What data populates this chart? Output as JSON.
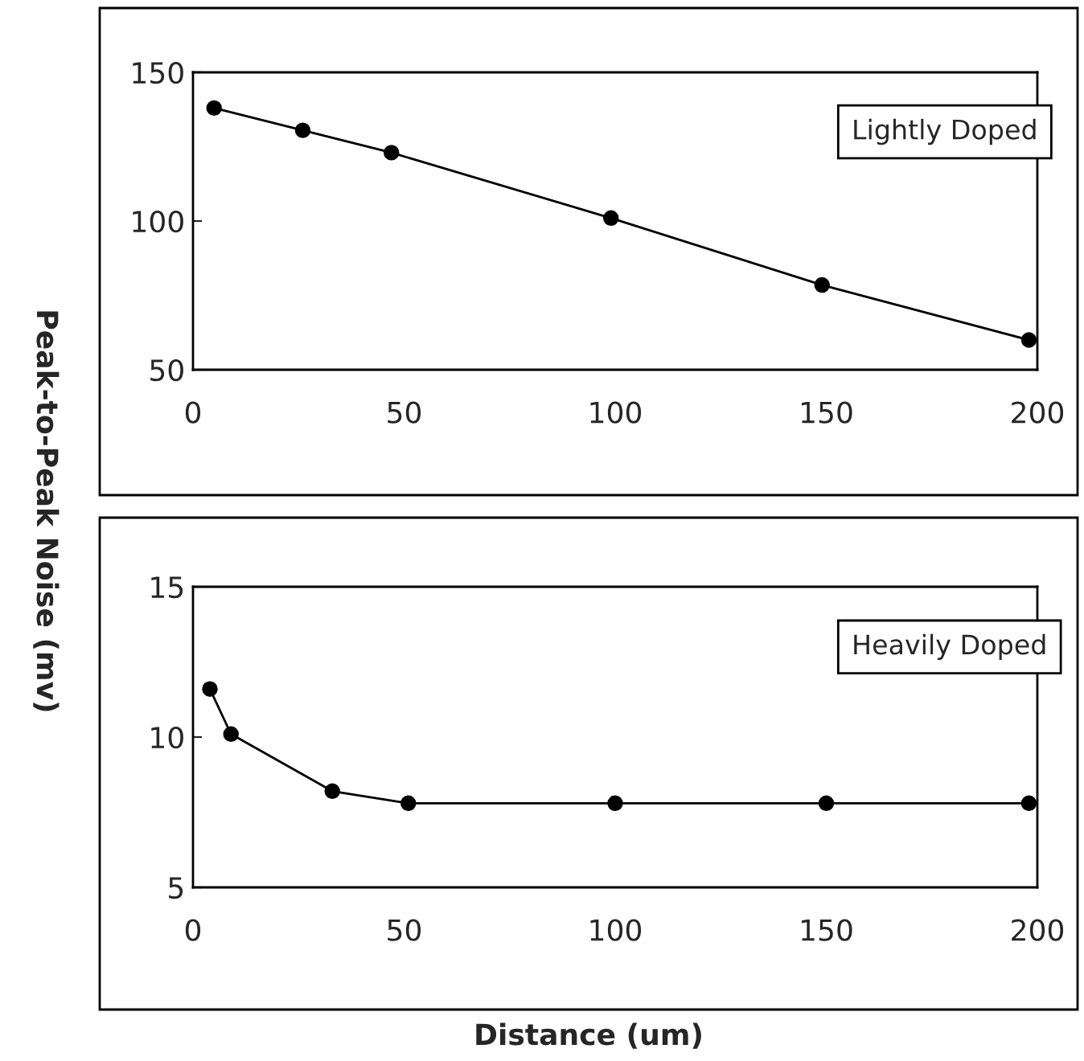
{
  "chart_data": [
    {
      "type": "line",
      "ylabel": "Peak-to-Peak Noise (mv)",
      "x": [
        5,
        26,
        47,
        99,
        149,
        198
      ],
      "series": [
        {
          "color": "#000000",
          "values": [
            138,
            130.5,
            123,
            101,
            78.5,
            60
          ]
        }
      ],
      "xlim": [
        0,
        200
      ],
      "xticks": [
        0,
        50,
        100,
        150,
        200
      ],
      "ylim": [
        50,
        150
      ],
      "yticks": [
        50,
        100,
        150
      ],
      "annotations": [
        "Lightly Doped"
      ],
      "marker": "circle",
      "line_style": "solid",
      "grid": false,
      "legend": false
    },
    {
      "type": "line",
      "xlabel": "Distance (um)",
      "x": [
        4,
        9,
        33,
        51,
        100,
        150,
        198
      ],
      "series": [
        {
          "color": "#000000",
          "values": [
            11.6,
            10.1,
            8.2,
            7.8,
            7.8,
            7.8,
            7.8
          ]
        }
      ],
      "xlim": [
        0,
        200
      ],
      "xticks": [
        0,
        50,
        100,
        150,
        200
      ],
      "ylim": [
        5,
        15
      ],
      "yticks": [
        5,
        10,
        15
      ],
      "annotations": [
        "Heavily Doped"
      ],
      "marker": "circle",
      "line_style": "solid",
      "grid": false,
      "legend": false
    }
  ]
}
